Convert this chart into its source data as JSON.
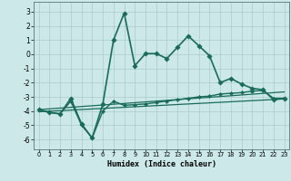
{
  "xlabel": "Humidex (Indice chaleur)",
  "xlim": [
    -0.5,
    23.5
  ],
  "ylim": [
    -6.7,
    3.7
  ],
  "yticks": [
    3,
    2,
    1,
    0,
    -1,
    -2,
    -3,
    -4,
    -5,
    -6
  ],
  "xticks": [
    0,
    1,
    2,
    3,
    4,
    5,
    6,
    7,
    8,
    9,
    10,
    11,
    12,
    13,
    14,
    15,
    16,
    17,
    18,
    19,
    20,
    21,
    22,
    23
  ],
  "background_color": "#cce8e8",
  "grid_color": "#aacccc",
  "line_color": "#1a6b5a",
  "line1_x": [
    0,
    1,
    2,
    3,
    4,
    5,
    6,
    7,
    8,
    9,
    10,
    11,
    12,
    13,
    14,
    15,
    16,
    17,
    18,
    19,
    20,
    21,
    22,
    23
  ],
  "line1_y": [
    -3.9,
    -4.1,
    -4.2,
    -3.1,
    -4.9,
    -5.9,
    -3.5,
    1.0,
    2.9,
    -0.8,
    0.05,
    0.05,
    -0.3,
    0.5,
    1.3,
    0.6,
    -0.1,
    -2.0,
    -1.7,
    -2.1,
    -2.4,
    -2.5,
    -3.2,
    -3.1
  ],
  "line2_x": [
    0,
    1,
    2,
    3,
    4,
    5,
    6,
    7,
    8,
    9,
    10,
    11,
    12,
    13,
    14,
    15,
    16,
    17,
    18,
    19,
    20,
    21,
    22,
    23
  ],
  "line2_y": [
    -3.9,
    -4.1,
    -4.2,
    -3.3,
    -5.0,
    -5.9,
    -4.0,
    -3.3,
    -3.6,
    -3.55,
    -3.5,
    -3.4,
    -3.3,
    -3.2,
    -3.1,
    -3.0,
    -2.95,
    -2.8,
    -2.75,
    -2.7,
    -2.6,
    -2.55,
    -3.1,
    -3.1
  ],
  "line3_x": [
    0,
    23
  ],
  "line3_y": [
    -3.9,
    -2.65
  ],
  "line4_x": [
    0,
    23
  ],
  "line4_y": [
    -4.05,
    -3.15
  ]
}
